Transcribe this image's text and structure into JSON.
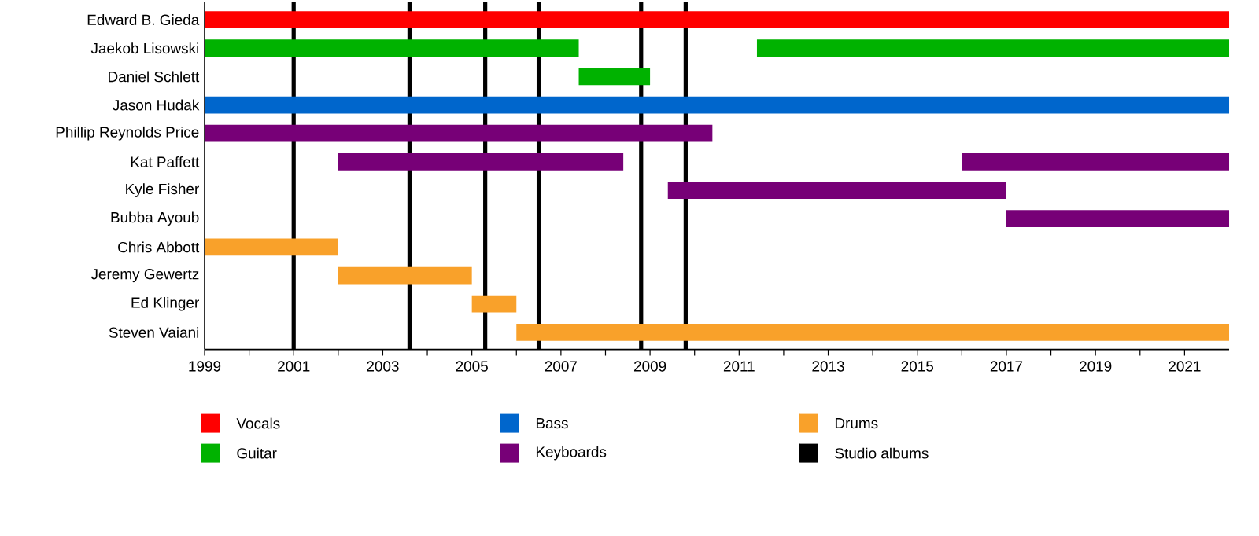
{
  "chart_data": {
    "type": "bar",
    "orientation": "horizontal",
    "categories": [
      "Edward B. Gieda",
      "Jaekob Lisowski",
      "Daniel Schlett",
      "Jason Hudak",
      "Phillip Reynolds Price",
      "Kat Paffett",
      "Kyle Fisher",
      "Bubba Ayoub",
      "Chris Abbott",
      "Jeremy Gewertz",
      "Ed Klinger",
      "Steven Vaiani"
    ],
    "series": [
      {
        "name": "Vocals",
        "color": "#ff0000",
        "base": [
          1999,
          null,
          null,
          null,
          null,
          null,
          null,
          null,
          null,
          null,
          null,
          null
        ],
        "values": [
          23,
          null,
          null,
          null,
          null,
          null,
          null,
          null,
          null,
          null,
          null,
          null
        ]
      },
      {
        "name": "Guitar",
        "color": "#00b200",
        "base": [
          null,
          1999,
          2007.4,
          null,
          null,
          null,
          null,
          null,
          null,
          null,
          null,
          null
        ],
        "values": [
          null,
          8.4,
          1.6,
          null,
          null,
          null,
          null,
          null,
          null,
          null,
          null,
          null
        ]
      },
      {
        "name": "Bass",
        "color": "#0066cc",
        "base": [
          null,
          null,
          null,
          1999,
          null,
          null,
          null,
          null,
          null,
          null,
          null,
          null
        ],
        "values": [
          null,
          null,
          null,
          23,
          null,
          null,
          null,
          null,
          null,
          null,
          null,
          null
        ]
      },
      {
        "name": "Keyboards",
        "color": "#770077",
        "base": [
          null,
          null,
          null,
          null,
          1999,
          2002,
          2009.4,
          2017,
          null,
          null,
          null,
          null
        ],
        "values": [
          null,
          null,
          null,
          null,
          11.4,
          6.4,
          7.6,
          5,
          null,
          null,
          null,
          null
        ]
      },
      {
        "name": "Drums",
        "color": "#f9a12a",
        "base": [
          null,
          null,
          null,
          null,
          null,
          null,
          null,
          null,
          1999,
          2002,
          2005,
          2006
        ],
        "values": [
          null,
          null,
          null,
          null,
          null,
          null,
          null,
          null,
          3,
          3,
          1,
          16
        ]
      },
      {
        "color": "#00b200",
        "base": [
          null,
          2011.4,
          null,
          null,
          null,
          null,
          null,
          null,
          null,
          null,
          null,
          null
        ],
        "values": [
          null,
          10.6,
          null,
          null,
          null,
          null,
          null,
          null,
          null,
          null,
          null,
          null
        ]
      },
      {
        "color": "#770077",
        "base": [
          null,
          null,
          null,
          null,
          null,
          2016,
          null,
          null,
          null,
          null,
          null,
          null
        ],
        "values": [
          null,
          null,
          null,
          null,
          null,
          6,
          null,
          null,
          null,
          null,
          null,
          null
        ]
      }
    ],
    "xlim": [
      1999,
      2022
    ],
    "xticks": [
      1999,
      {
        "value": 2000,
        "label": null
      },
      2001,
      {
        "value": 2002,
        "label": null
      },
      2003,
      {
        "value": 2004,
        "label": null
      },
      2005,
      {
        "value": 2006,
        "label": null
      },
      2007,
      {
        "value": 2008,
        "label": null
      },
      2009,
      {
        "value": 2010,
        "label": null
      },
      2011,
      {
        "value": 2012,
        "label": null
      },
      2013,
      {
        "value": 2014,
        "label": null
      },
      2015,
      {
        "value": 2016,
        "label": null
      },
      2017,
      {
        "value": 2018,
        "label": null
      },
      2019,
      {
        "value": 2020,
        "label": null
      },
      2021
    ],
    "ref_lines": [
      {
        "axis": "x",
        "value": 2001.0,
        "label": "Studio albums",
        "color": "#000000"
      },
      {
        "axis": "x",
        "value": 2003.6,
        "color": "#000000"
      },
      {
        "axis": "x",
        "value": 2005.3,
        "color": "#000000"
      },
      {
        "axis": "x",
        "value": 2006.5,
        "color": "#000000"
      },
      {
        "axis": "x",
        "value": 2008.8,
        "color": "#000000"
      },
      {
        "axis": "x",
        "value": 2009.8,
        "color": "#000000"
      }
    ],
    "legend": "bottom"
  }
}
